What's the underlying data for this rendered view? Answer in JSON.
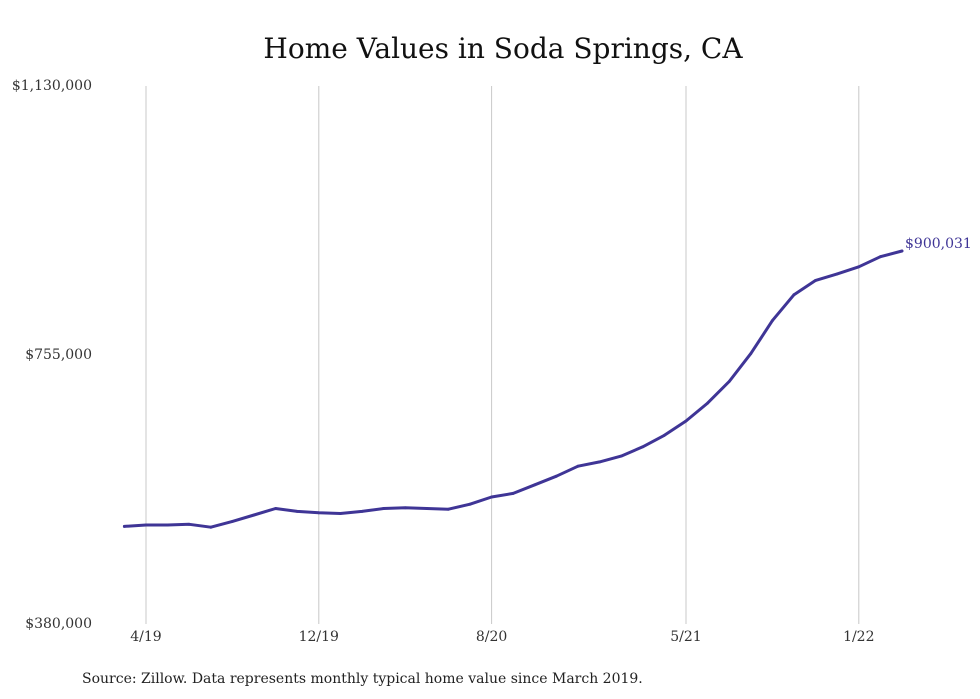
{
  "chart_data": {
    "type": "line",
    "title": "Home Values in Soda Springs, CA",
    "xlabel": "",
    "ylabel": "",
    "x_range": [
      "2019-03",
      "2022-05"
    ],
    "ylim": [
      380000,
      1130000
    ],
    "y_ticks": [
      {
        "value": 1130000,
        "label": "$1,130,000"
      },
      {
        "value": 755000,
        "label": "$755,000"
      },
      {
        "value": 380000,
        "label": "$380,000"
      }
    ],
    "x_ticks": [
      {
        "x": "2019-04",
        "label": "4/19"
      },
      {
        "x": "2019-12",
        "label": "12/19"
      },
      {
        "x": "2020-08",
        "label": "8/20"
      },
      {
        "x": "2021-05",
        "label": "5/21"
      },
      {
        "x": "2022-01",
        "label": "1/22"
      }
    ],
    "grid": {
      "vertical": true,
      "horizontal": false
    },
    "series": [
      {
        "color": "#3f3596",
        "points": [
          {
            "x": "2019-03",
            "y": 516000
          },
          {
            "x": "2019-04",
            "y": 518000
          },
          {
            "x": "2019-05",
            "y": 518000
          },
          {
            "x": "2019-06",
            "y": 519000
          },
          {
            "x": "2019-07",
            "y": 515000
          },
          {
            "x": "2019-08",
            "y": 523000
          },
          {
            "x": "2019-09",
            "y": 532000
          },
          {
            "x": "2019-10",
            "y": 541000
          },
          {
            "x": "2019-11",
            "y": 537000
          },
          {
            "x": "2019-12",
            "y": 535000
          },
          {
            "x": "2020-01",
            "y": 534000
          },
          {
            "x": "2020-02",
            "y": 537000
          },
          {
            "x": "2020-03",
            "y": 541000
          },
          {
            "x": "2020-04",
            "y": 542000
          },
          {
            "x": "2020-05",
            "y": 541000
          },
          {
            "x": "2020-06",
            "y": 540000
          },
          {
            "x": "2020-07",
            "y": 547000
          },
          {
            "x": "2020-08",
            "y": 557000
          },
          {
            "x": "2020-09",
            "y": 562000
          },
          {
            "x": "2020-10",
            "y": 574000
          },
          {
            "x": "2020-11",
            "y": 586000
          },
          {
            "x": "2020-12",
            "y": 600000
          },
          {
            "x": "2021-01",
            "y": 606000
          },
          {
            "x": "2021-02",
            "y": 614000
          },
          {
            "x": "2021-03",
            "y": 627000
          },
          {
            "x": "2021-04",
            "y": 643000
          },
          {
            "x": "2021-05",
            "y": 663000
          },
          {
            "x": "2021-06",
            "y": 688000
          },
          {
            "x": "2021-07",
            "y": 718000
          },
          {
            "x": "2021-08",
            "y": 757000
          },
          {
            "x": "2021-09",
            "y": 803000
          },
          {
            "x": "2021-10",
            "y": 839000
          },
          {
            "x": "2021-11",
            "y": 859000
          },
          {
            "x": "2021-12",
            "y": 868000
          },
          {
            "x": "2022-01",
            "y": 878000
          },
          {
            "x": "2022-02",
            "y": 892000
          },
          {
            "x": "2022-03",
            "y": 900031
          }
        ],
        "end_label": "$900,031"
      }
    ]
  },
  "source_note": "Source: Zillow. Data represents monthly typical home value since March 2019."
}
